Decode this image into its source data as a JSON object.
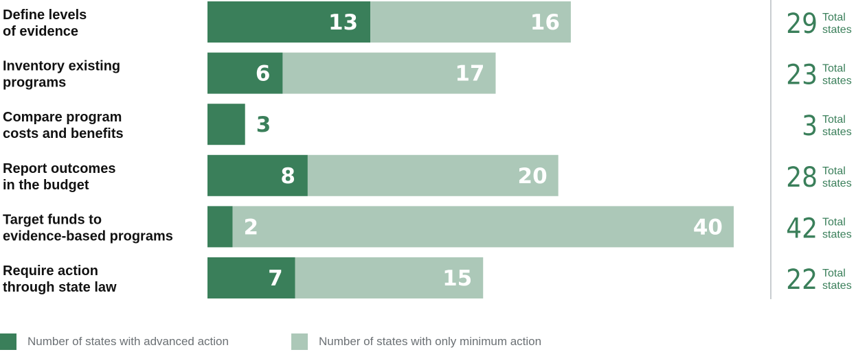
{
  "chart_data": {
    "type": "bar",
    "stacked": true,
    "orientation": "horizontal",
    "categories": [
      [
        "Define levels",
        "of evidence"
      ],
      [
        "Inventory existing",
        "programs"
      ],
      [
        "Compare program",
        "costs and benefits"
      ],
      [
        "Report outcomes",
        "in the budget"
      ],
      [
        "Target funds to",
        "evidence-based programs"
      ],
      [
        "Require action",
        "through state law"
      ]
    ],
    "series": [
      {
        "name": "Number of states with advanced action",
        "values": [
          13,
          6,
          3,
          8,
          2,
          7
        ],
        "color": "#3a7f5a"
      },
      {
        "name": "Number of states with only minimum action",
        "values": [
          16,
          17,
          0,
          20,
          40,
          15
        ],
        "color": "#acc8b8"
      }
    ],
    "totals": [
      29,
      23,
      3,
      28,
      42,
      22
    ],
    "total_label": [
      "Total",
      "states"
    ],
    "xlim": [
      0,
      42
    ],
    "grid": false,
    "legend_position": "bottom-left"
  }
}
